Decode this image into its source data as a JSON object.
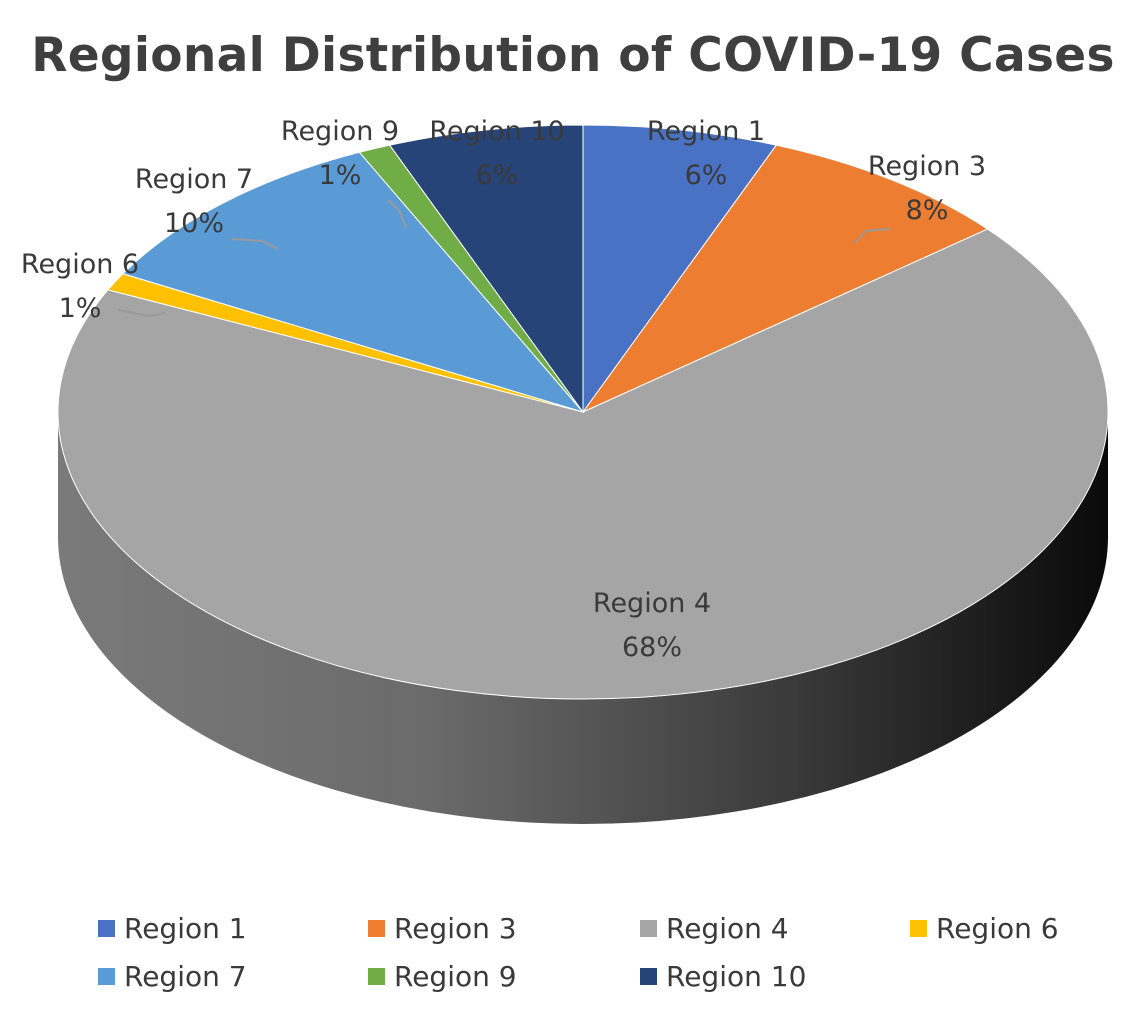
{
  "chart_data": {
    "type": "pie",
    "title": "Regional Distribution of COVID-19 Cases",
    "unit": "%",
    "slices": [
      {
        "name": "Region 1",
        "value": 6,
        "label": "6%",
        "color": "#4a72c4"
      },
      {
        "name": "Region 3",
        "value": 8,
        "label": "8%",
        "color": "#ed7d31"
      },
      {
        "name": "Region 4",
        "value": 68,
        "label": "68%",
        "color": "#a5a5a5"
      },
      {
        "name": "Region 6",
        "value": 1,
        "label": "1%",
        "color": "#ffc000"
      },
      {
        "name": "Region 7",
        "value": 10,
        "label": "10%",
        "color": "#5b9bd5"
      },
      {
        "name": "Region 9",
        "value": 1,
        "label": "1%",
        "color": "#70ad47"
      },
      {
        "name": "Region 10",
        "value": 6,
        "label": "6%",
        "color": "#264478"
      }
    ],
    "legend": {
      "placement": "bottom",
      "items": [
        "Region 1",
        "Region 3",
        "Region 4",
        "Region 6",
        "Region 7",
        "Region 9",
        "Region 10"
      ]
    },
    "style": "3d-pie"
  }
}
